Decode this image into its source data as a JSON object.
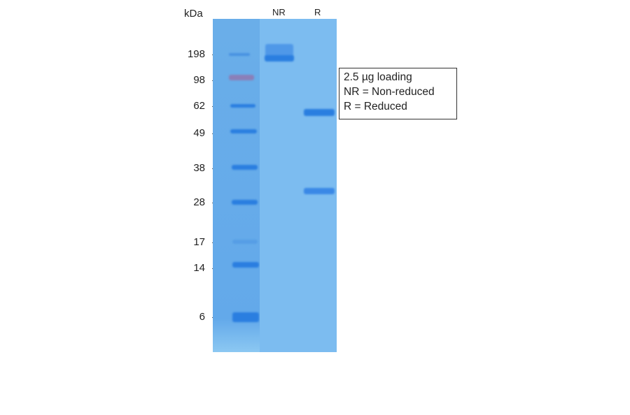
{
  "axis_unit": "kDa",
  "markers": [
    "198",
    "98",
    "62",
    "49",
    "38",
    "28",
    "17",
    "14",
    "6"
  ],
  "lanes": [
    "NR",
    "R"
  ],
  "legend": {
    "line1": "2.5 µg loading",
    "line2": "NR = Non-reduced",
    "line3": "R = Reduced"
  },
  "colors": {
    "gel": "#7cbcf0",
    "band": "#2a7ee0",
    "ladder_98": "#8a7fb8"
  }
}
